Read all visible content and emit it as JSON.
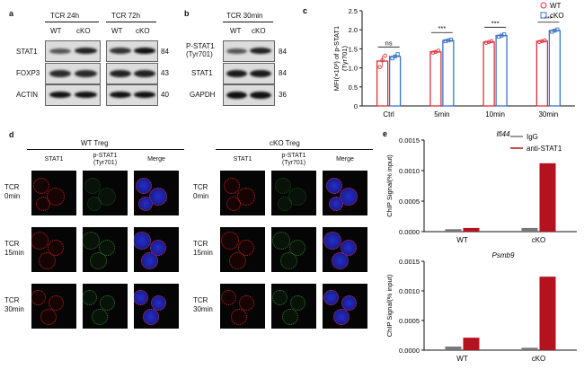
{
  "panels": {
    "a": {
      "letter": "a",
      "headers": [
        "TCR 24h",
        "TCR 72h"
      ],
      "lanes": [
        "WT",
        "cKO",
        "WT",
        "cKO"
      ],
      "rows": [
        {
          "label": "STAT1",
          "kd": "84"
        },
        {
          "label": "FOXP3",
          "kd": "43"
        },
        {
          "label": "ACTIN",
          "kd": "40"
        }
      ]
    },
    "b": {
      "letter": "b",
      "header": "TCR 30min",
      "lanes": [
        "WT",
        "cKO"
      ],
      "rows": [
        {
          "label": "P-STAT1\n(Tyr701)",
          "kd": "84"
        },
        {
          "label": "STAT1",
          "kd": "84"
        },
        {
          "label": "GAPDH",
          "kd": "36"
        }
      ]
    },
    "d": {
      "letter": "d",
      "groups": [
        "WT Treg",
        "cKO Treg"
      ],
      "columns": [
        "STAT1",
        "p-STAT1\n(Tyr701)",
        "Merge"
      ],
      "rows": [
        "TCR\n0min",
        "TCR\n15min",
        "TCR\n30min"
      ]
    }
  },
  "chart_data": [
    {
      "panel_letter": "c",
      "type": "bar",
      "categories": [
        "Ctrl",
        "5min",
        "10min",
        "30min"
      ],
      "series": [
        {
          "name": "WT",
          "values": [
            1.18,
            1.42,
            1.68,
            1.7
          ],
          "color": "#e0333a"
        },
        {
          "name": "cKO",
          "values": [
            1.3,
            1.72,
            1.85,
            1.98
          ],
          "color": "#3a73c4"
        }
      ],
      "points": {
        "WT": [
          [
            1.02,
            1.2,
            1.32
          ],
          [
            1.4,
            1.42,
            1.45
          ],
          [
            1.66,
            1.68,
            1.7
          ],
          [
            1.68,
            1.7,
            1.72
          ]
        ],
        "cKO": [
          [
            1.25,
            1.3,
            1.36
          ],
          [
            1.7,
            1.72,
            1.74
          ],
          [
            1.82,
            1.85,
            1.88
          ],
          [
            1.95,
            1.98,
            2.01
          ]
        ]
      },
      "significance": [
        "ns",
        "***",
        "***",
        "***"
      ],
      "ylabel": "MFI(×10³) of p-STAT1\n(Tyr701)",
      "yticks": [
        0,
        0.5,
        1.0,
        1.5,
        2.0,
        2.5
      ],
      "ytick_labels": [
        "0",
        "0.5",
        "1.0",
        "1.5",
        "2.0",
        "2.5"
      ],
      "ylim": [
        0,
        2.5
      ],
      "legend": [
        "WT",
        "cKO"
      ]
    },
    {
      "panel_letter": "e",
      "type": "bar",
      "title": "Ifi44",
      "categories": [
        "WT",
        "cKO"
      ],
      "series": [
        {
          "name": "IgG",
          "values": [
            4e-05,
            6e-05
          ],
          "color": "#777777"
        },
        {
          "name": "anti-STAT1",
          "values": [
            6e-05,
            0.00112
          ],
          "color": "#b3121e"
        }
      ],
      "ylabel": "ChIP Signal(% input)",
      "yticks": [
        0,
        0.0005,
        0.001,
        0.0015
      ],
      "ytick_labels": [
        "0.0000",
        "0.0005",
        "0.0010",
        "0.0015"
      ],
      "ylim": [
        0,
        0.0015
      ],
      "legend": [
        "IgG",
        "anti-STAT1"
      ]
    },
    {
      "type": "bar",
      "title": "Psmb9",
      "categories": [
        "WT",
        "cKO"
      ],
      "series": [
        {
          "name": "IgG",
          "values": [
            6e-05,
            4e-05
          ],
          "color": "#777777"
        },
        {
          "name": "anti-STAT1",
          "values": [
            0.00021,
            0.00124
          ],
          "color": "#b3121e"
        }
      ],
      "ylabel": "ChIP Signal(% input)",
      "yticks": [
        0,
        0.0005,
        0.001,
        0.0015
      ],
      "ytick_labels": [
        "0.0000",
        "0.0005",
        "0.0010",
        "0.0015"
      ],
      "ylim": [
        0,
        0.0015
      ]
    }
  ]
}
